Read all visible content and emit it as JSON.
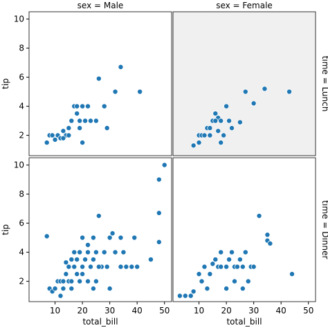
{
  "chart_data": {
    "type": "scatter",
    "col_titles": [
      "sex = Male",
      "sex = Female"
    ],
    "row_titles": [
      "time = Lunch",
      "time = Dinner"
    ],
    "xlabel": "total_bill",
    "ylabel": "tip",
    "xlim": [
      0.5,
      52.6
    ],
    "ylim": [
      0.6,
      10.5
    ],
    "xticks": [
      10,
      20,
      30,
      40,
      50
    ],
    "yticks": [
      2,
      4,
      6,
      8,
      10
    ],
    "color": "#1f77b4",
    "panels": [
      {
        "x": [
          7,
          8,
          9,
          10,
          11,
          12,
          13,
          14,
          15,
          16,
          17,
          18,
          18,
          19,
          20,
          20,
          21,
          22,
          23,
          25,
          26,
          28,
          29,
          32,
          34,
          41,
          13,
          15,
          19
        ],
        "y": [
          1.5,
          2,
          2,
          1.7,
          2,
          1.8,
          2.3,
          2,
          2.5,
          3,
          4,
          3.5,
          4,
          2.5,
          1.5,
          4,
          3,
          4,
          3,
          3,
          5.9,
          4,
          2.5,
          5,
          6.7,
          5,
          1.8,
          2,
          3
        ]
      },
      {
        "background": "#f0f0f0",
        "x": [
          8,
          10,
          10,
          11,
          12,
          13,
          14,
          15,
          16,
          17,
          17,
          18,
          19,
          20,
          21,
          22,
          25,
          27,
          30,
          34,
          43,
          14,
          16,
          18
        ],
        "y": [
          1.3,
          1.5,
          2,
          2,
          2,
          2.5,
          2,
          3,
          3.5,
          2.3,
          3.2,
          3,
          2,
          4,
          3,
          2.5,
          2.9,
          5,
          4.2,
          5.2,
          5,
          2.5,
          3,
          1.5
        ]
      },
      {
        "x": [
          7,
          8,
          9,
          10,
          11,
          12,
          12,
          13,
          13,
          14,
          15,
          15,
          16,
          16,
          17,
          17,
          18,
          18,
          19,
          19,
          20,
          20,
          21,
          22,
          22,
          23,
          24,
          24,
          25,
          25,
          26,
          27,
          28,
          29,
          30,
          31,
          32,
          34,
          35,
          36,
          38,
          39,
          40,
          45,
          48,
          48,
          48,
          50,
          14,
          16,
          20,
          22,
          26,
          30,
          34,
          24
        ],
        "y": [
          5.1,
          1.5,
          1.3,
          1.5,
          2,
          1,
          2,
          2,
          1.5,
          2.5,
          3,
          2,
          3.5,
          2,
          3,
          4,
          3.5,
          2.5,
          4,
          2,
          3,
          5,
          3.5,
          4,
          2,
          3,
          3.5,
          5,
          4,
          2,
          6.5,
          3,
          4,
          3,
          5,
          5.3,
          4,
          3,
          4,
          3,
          3,
          5,
          3,
          3.5,
          4.7,
          9,
          6.7,
          10,
          3.3,
          1.5,
          2.5,
          4.5,
          3,
          1.5,
          5,
          1.5
        ]
      },
      {
        "x": [
          3,
          5,
          7,
          8,
          10,
          11,
          12,
          13,
          14,
          15,
          16,
          17,
          18,
          18,
          20,
          21,
          22,
          23,
          23,
          24,
          25,
          26,
          27,
          28,
          29,
          30,
          32,
          35,
          35,
          36,
          44,
          26,
          20
        ],
        "y": [
          1,
          1,
          1,
          1.3,
          2.5,
          2,
          3,
          1.5,
          2.5,
          3.2,
          3.5,
          3,
          3,
          4,
          3,
          3.5,
          4,
          3,
          2,
          3,
          3.5,
          3,
          4,
          2,
          3,
          3,
          6.5,
          5.2,
          4.8,
          4.6,
          2.5,
          1.5,
          1.5
        ]
      }
    ]
  }
}
